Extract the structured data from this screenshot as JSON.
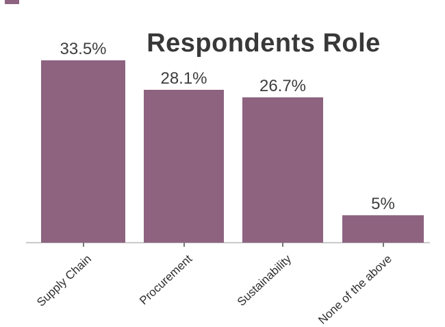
{
  "title": "Respondents Role",
  "chart_data": {
    "type": "bar",
    "orientation": "vertical",
    "title": "Respondents Role",
    "categories": [
      "Supply Chain",
      "Procurement",
      "Sustainability",
      "None of the above"
    ],
    "values": [
      33.5,
      28.1,
      26.7,
      5
    ],
    "value_labels": [
      "33.5%",
      "28.1%",
      "26.7%",
      "5%"
    ],
    "xlabel": "",
    "ylabel": "",
    "ylim": [
      0,
      35
    ],
    "grid": false,
    "legend": false,
    "bar_color": "#8d6380",
    "category_label_rotation_deg": -43
  },
  "colors": {
    "background": "#ffffff",
    "bar": "#8d6380",
    "title_text": "#383838",
    "value_label_text": "#3d3d3d",
    "category_label_text": "#2e2e2e",
    "axis_line": "#c9c9c9",
    "tick": "#777777"
  }
}
